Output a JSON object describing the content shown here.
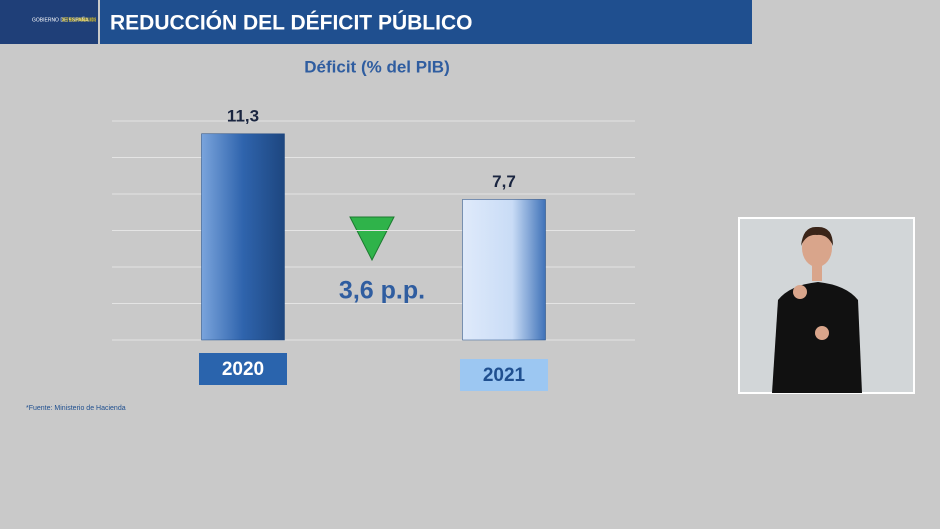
{
  "header": {
    "logo": "GOBIERNO DE ESPAÑA",
    "campaign": "#ESTE VIRUS LO PARAMOS UNIDOS",
    "title": "REDUCCIÓN DEL DÉFICIT PÚBLICO"
  },
  "chart_data": {
    "type": "bar",
    "title": "Déficit (% del PIB)",
    "categories": [
      "2020",
      "2021"
    ],
    "values": [
      11.3,
      7.7
    ],
    "value_labels": [
      "11,3",
      "7,7"
    ],
    "colors": [
      "#2f64ad",
      "#c9dcf6"
    ],
    "ylim": [
      0,
      12
    ],
    "yticks": [
      0,
      2,
      4,
      6,
      8,
      10,
      12
    ],
    "grid": true,
    "annotation": "3,6 p.p.",
    "source": "*Fuente: Ministerio de Hacienda"
  }
}
